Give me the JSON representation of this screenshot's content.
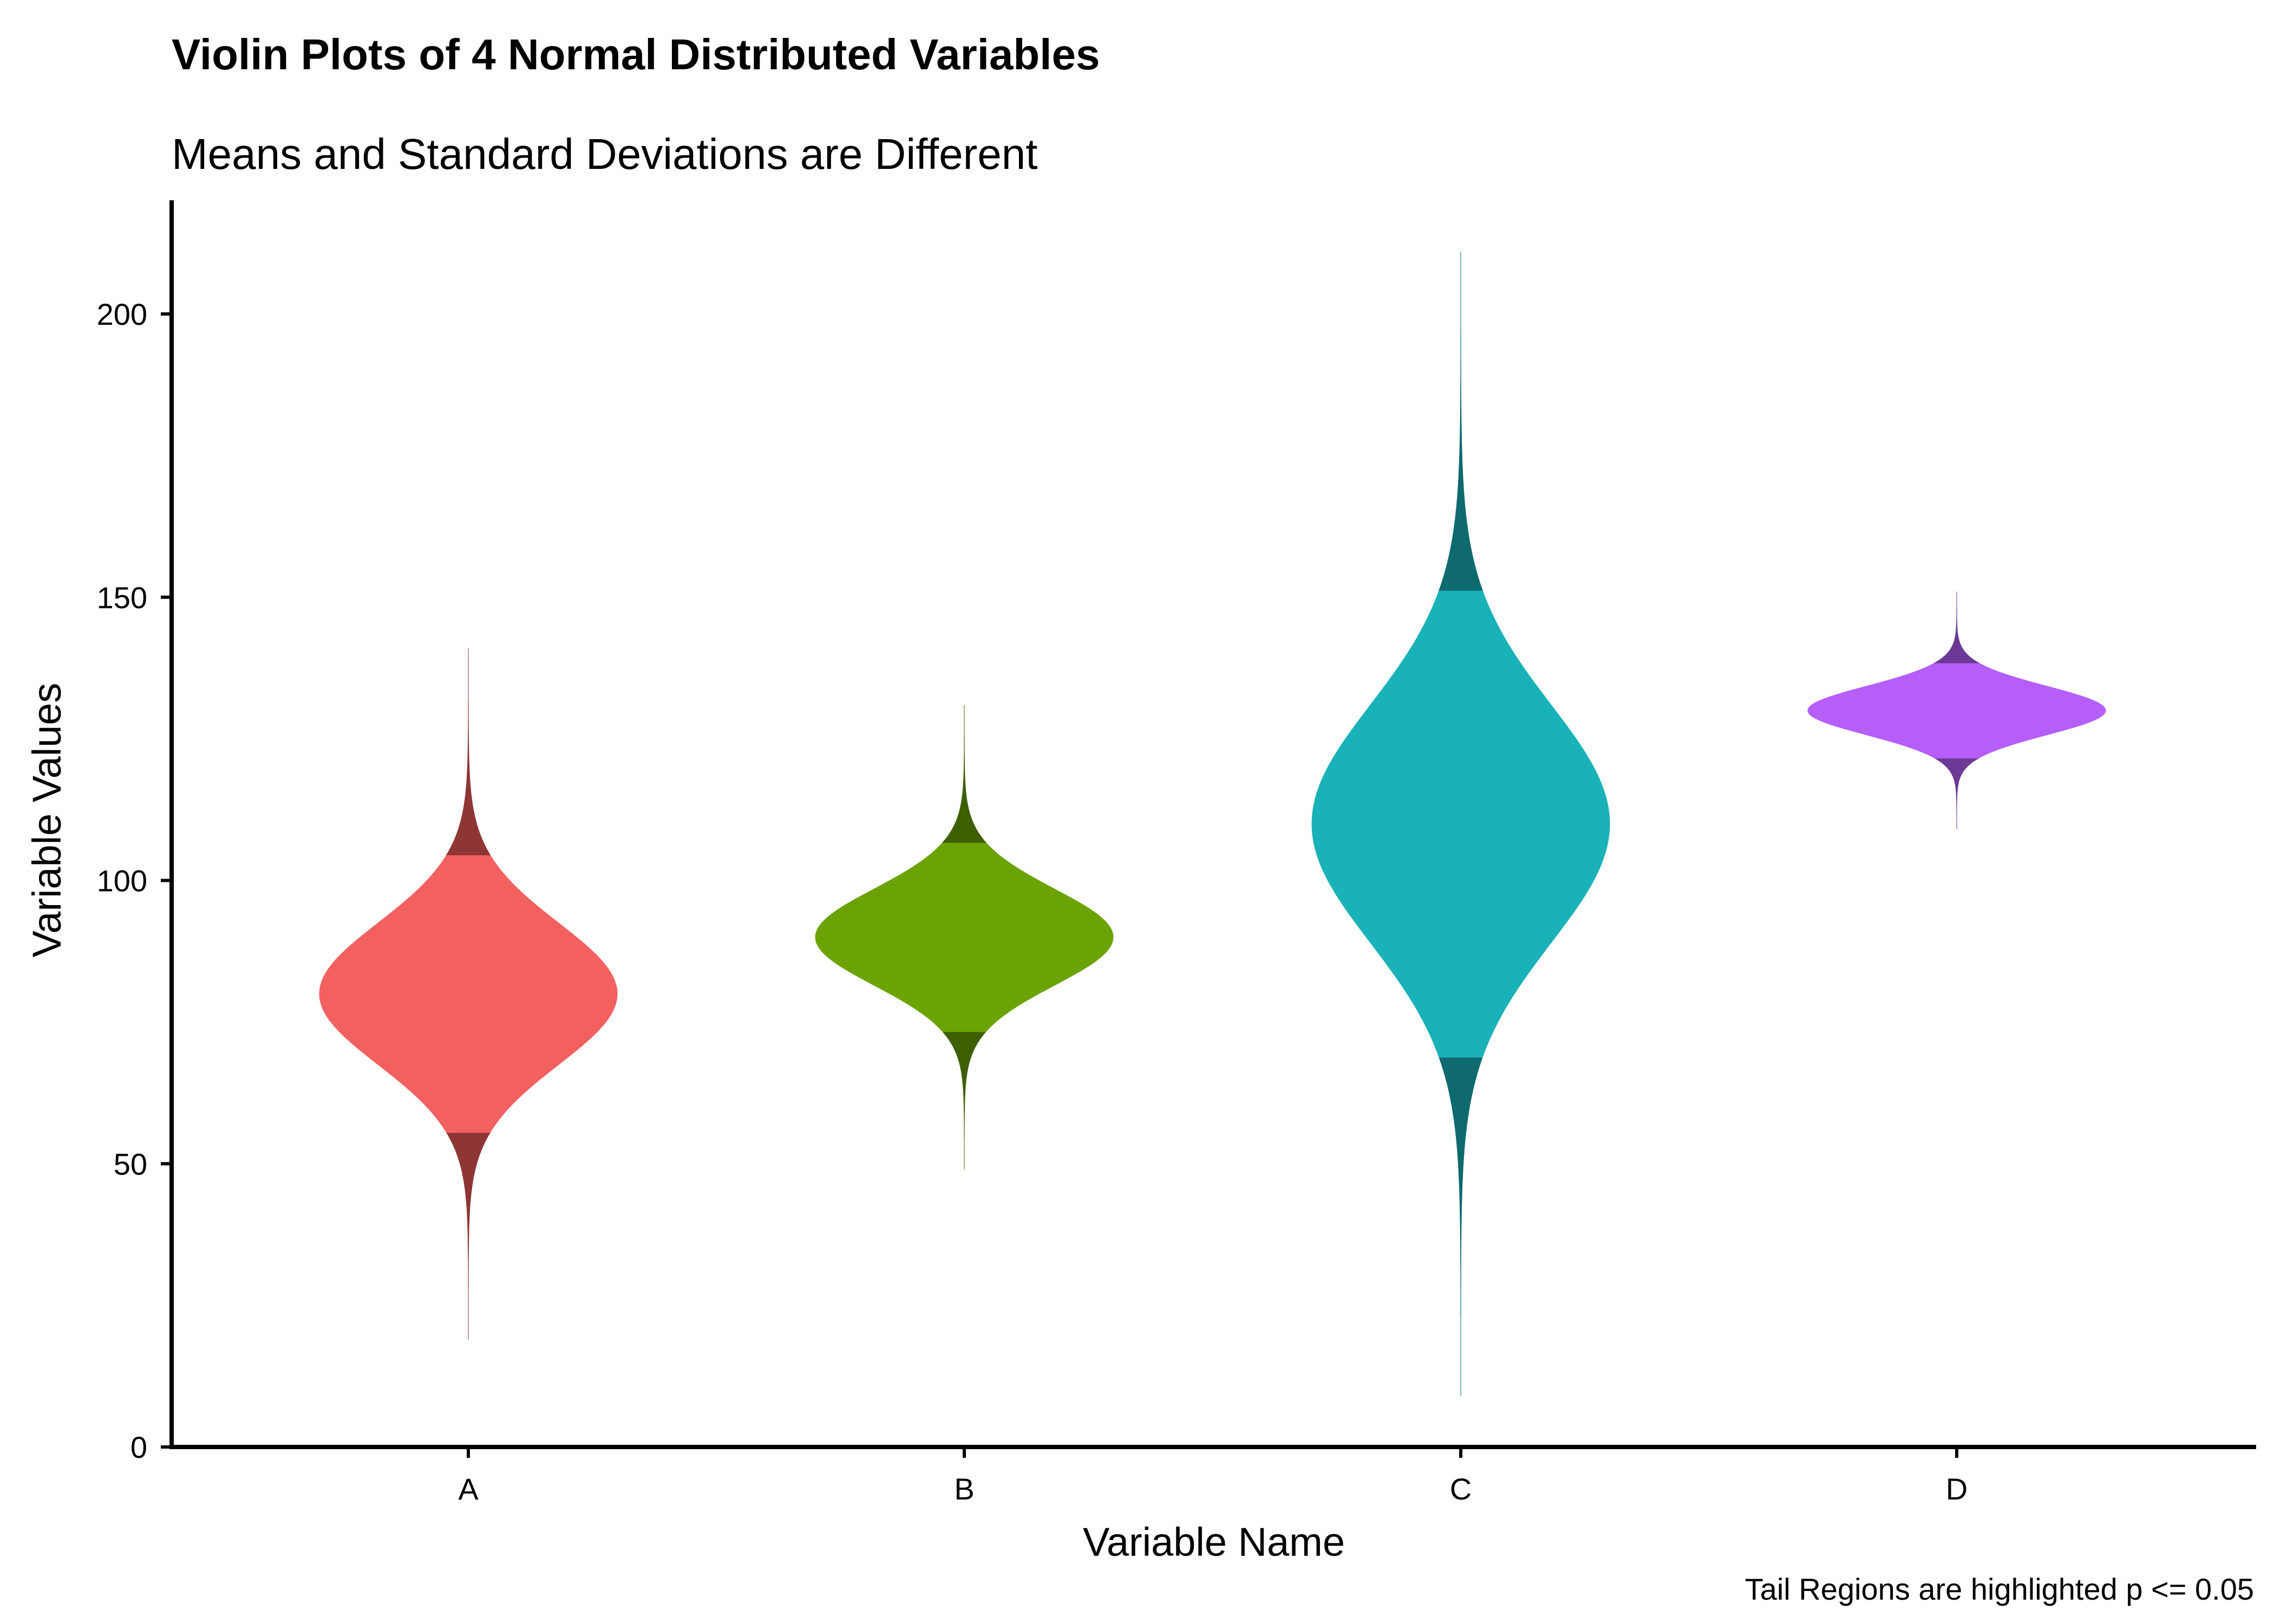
{
  "chart_data": {
    "type": "violin",
    "title": "Violin Plots of 4 Normal Distributed Variables",
    "subtitle": "Means and Standard Deviations are Different",
    "xlabel": "Variable Name",
    "ylabel": "Variable Values",
    "caption": "Tail Regions are highlighted p <= 0.05",
    "ylim": [
      0,
      220
    ],
    "yticks": [
      0,
      50,
      100,
      150,
      200
    ],
    "categories": [
      "A",
      "B",
      "C",
      "D"
    ],
    "series": [
      {
        "category": "A",
        "mean": 80,
        "sd": 12.5,
        "min": 19,
        "max": 141,
        "tail_low": 55.5,
        "tail_high": 104.5,
        "color": "#F26060",
        "tail_color": "#8E3535"
      },
      {
        "category": "B",
        "mean": 90,
        "sd": 8.5,
        "min": 49,
        "max": 131,
        "tail_low": 73.3,
        "tail_high": 106.7,
        "color": "#6BA304",
        "tail_color": "#3E5F00"
      },
      {
        "category": "C",
        "mean": 110,
        "sd": 21,
        "min": 9,
        "max": 211,
        "tail_low": 68.8,
        "tail_high": 151.2,
        "color": "#19B2B8",
        "tail_color": "#0E6A6E"
      },
      {
        "category": "D",
        "mean": 130,
        "sd": 4.3,
        "min": 109,
        "max": 151,
        "tail_low": 121.6,
        "tail_high": 138.4,
        "color": "#B55EFA",
        "tail_color": "#6C3A96"
      }
    ],
    "grid": false,
    "legend": "none"
  }
}
